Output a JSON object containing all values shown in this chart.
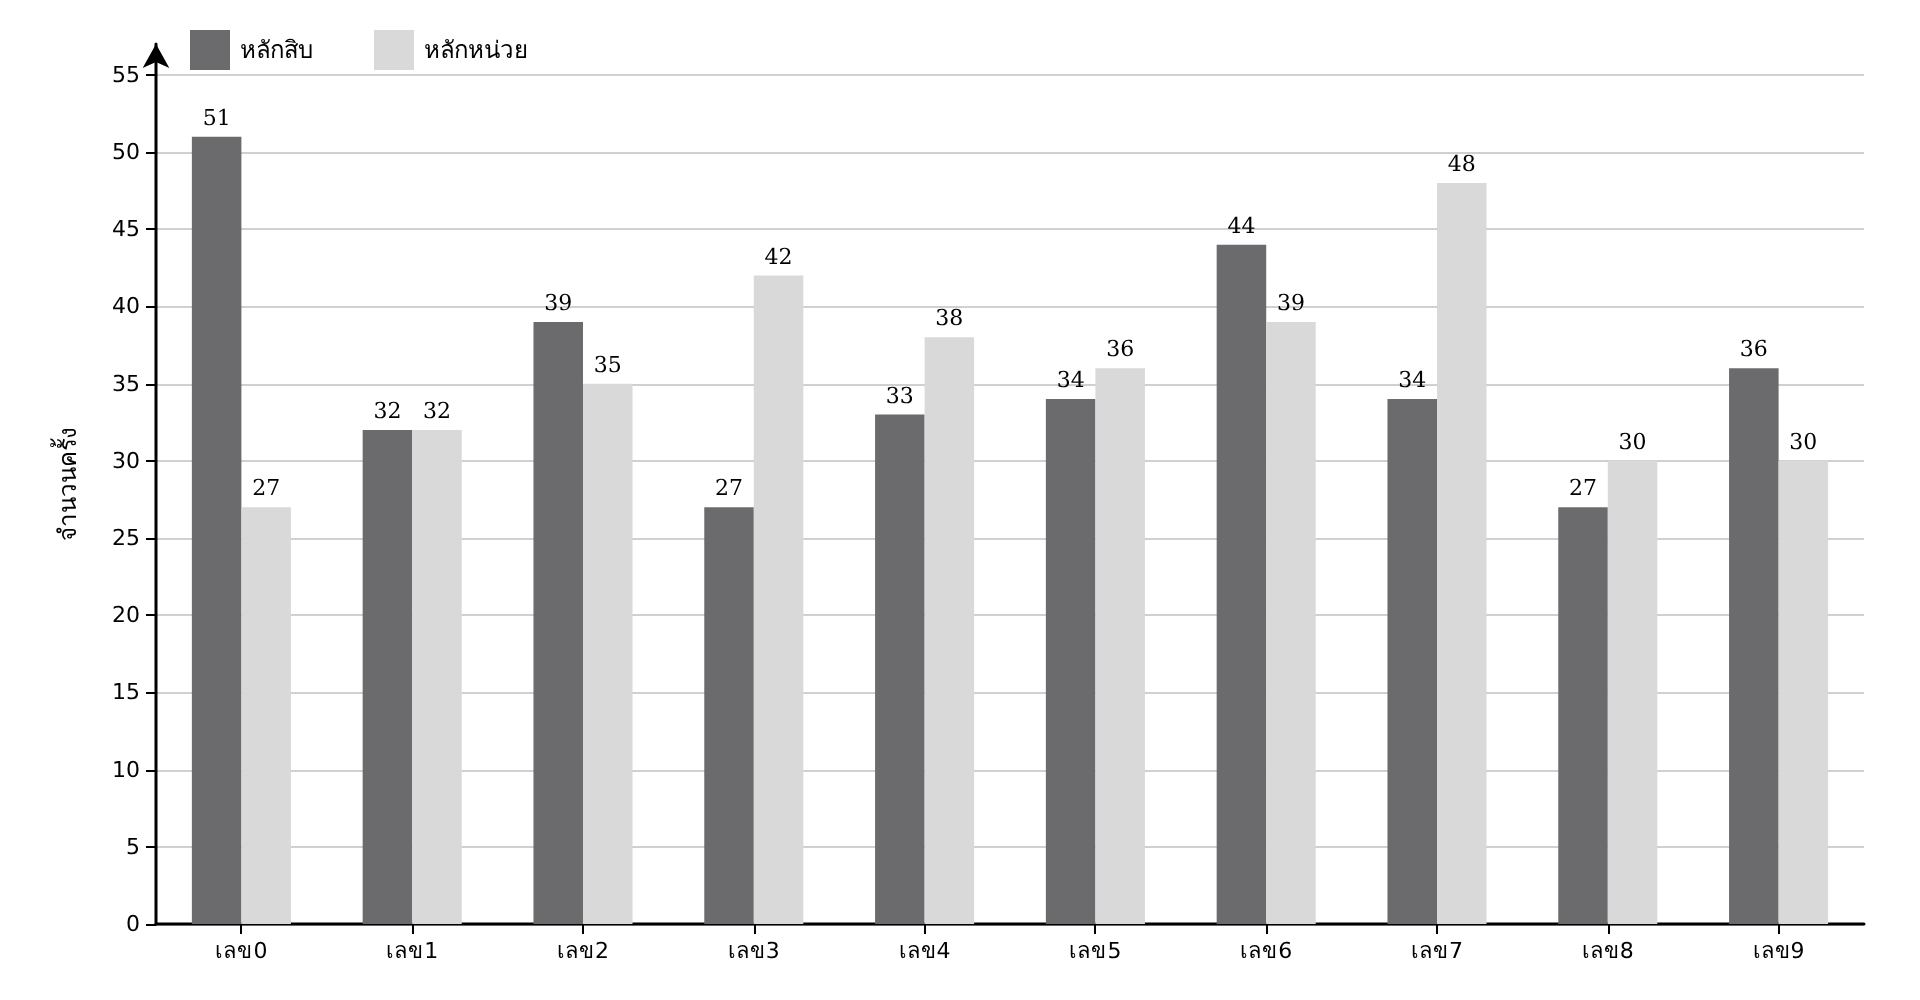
{
  "chart_data": {
    "type": "bar",
    "ylabel": "จำนวนครั้ง",
    "categories": [
      "เลข0",
      "เลข1",
      "เลข2",
      "เลข3",
      "เลข4",
      "เลข5",
      "เลข6",
      "เลข7",
      "เลข8",
      "เลข9"
    ],
    "series": [
      {
        "name": "หลักสิบ",
        "color": "#6b6b6d",
        "values": [
          51,
          32,
          39,
          27,
          33,
          34,
          44,
          34,
          27,
          36
        ]
      },
      {
        "name": "หลักหน่วย",
        "color": "#d9d9d9",
        "values": [
          27,
          32,
          35,
          42,
          38,
          36,
          39,
          48,
          30,
          30
        ]
      }
    ],
    "ylim": [
      0,
      57
    ],
    "yticks": [
      0,
      5,
      10,
      15,
      20,
      25,
      30,
      35,
      40,
      45,
      50,
      55
    ],
    "grid": "y",
    "legend": "top left",
    "data_labels": true
  }
}
